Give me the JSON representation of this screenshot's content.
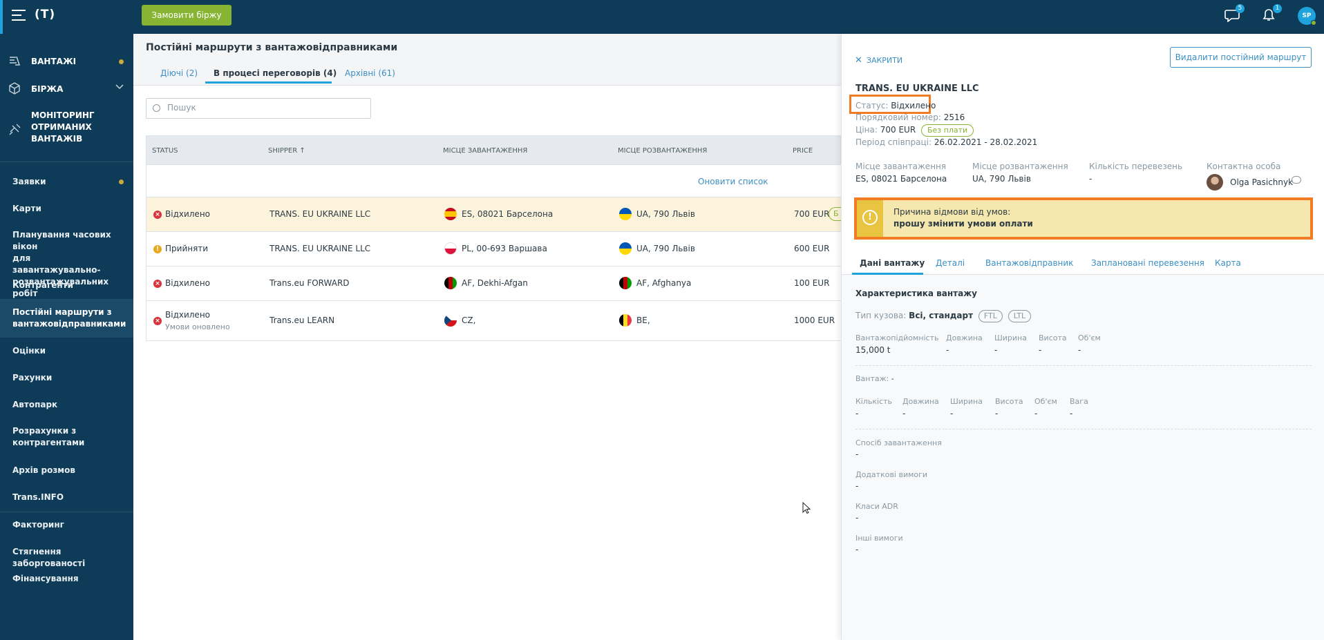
{
  "topbar": {
    "logo": "(T)",
    "order_button": "Замовити біржу",
    "messages_badge": "5",
    "notifications_badge": "1",
    "user_initials": "SP"
  },
  "sidebar": {
    "main": [
      {
        "label": "ВАНТАЖІ",
        "icon": "cargo-icon"
      },
      {
        "label": "БІРЖА",
        "icon": "box-icon"
      }
    ],
    "monitoring": {
      "line1": "МОНІТОРИНГ",
      "line2": "ОТРИМАНИХ",
      "line3": "ВАНТАЖІВ"
    },
    "items": [
      {
        "label": "Заявки"
      },
      {
        "label": "Карти"
      },
      {
        "line1": "Планування часових вікон",
        "line2": "для завантажувально-",
        "line3": "розвантажувальних робіт"
      },
      {
        "label": "Контрагенти"
      },
      {
        "line1": "Постійні маршрути з",
        "line2": "вантажовідправниками"
      },
      {
        "label": "Оцінки"
      },
      {
        "label": "Рахунки"
      },
      {
        "label": "Автопарк"
      },
      {
        "line1": "Розрахунки з",
        "line2": "контрагентами"
      },
      {
        "label": "Архів розмов"
      },
      {
        "label": "Trans.INFO"
      },
      {
        "label": "Факторинг"
      },
      {
        "label": "Стягнення заборгованості"
      },
      {
        "label": "Фінансування"
      }
    ]
  },
  "main": {
    "title": "Постійні маршрути з вантажовідправниками",
    "tabs": [
      {
        "label": "Діючі (2)"
      },
      {
        "label": "В процесі переговорів (4)"
      },
      {
        "label": "Архівні (61)"
      }
    ],
    "search_placeholder": "Пошук",
    "columns": [
      "STATUS",
      "SHIPPER ↑",
      "МІСЦЕ ЗАВАНТАЖЕННЯ",
      "МІСЦЕ РОЗВАНТАЖЕННЯ",
      "PRICE"
    ],
    "refresh": "Оновити список",
    "rows": [
      {
        "status": "Відхилено",
        "shipper": "TRANS. EU UKRAINE LLC",
        "load": "ES, 08021 Барселона",
        "unload": "UA, 790 Львів",
        "price": "700 EUR",
        "tag": "Б"
      },
      {
        "status": "Прийняти",
        "shipper": "TRANS. EU UKRAINE LLC",
        "load": "PL, 00-693 Варшава",
        "unload": "UA, 790 Львів",
        "price": "600 EUR"
      },
      {
        "status": "Відхилено",
        "shipper": "Trans.eu FORWARD",
        "load": "AF, Dekhi-Afgan",
        "unload": "AF, Afghanya",
        "price": "100 EUR"
      },
      {
        "status": "Відхилено",
        "sub": "Умови оновлено",
        "shipper": "Trans.eu LEARN",
        "load": "CZ,",
        "unload": "BE,",
        "price": "1000 EUR"
      }
    ]
  },
  "panel": {
    "close": "ЗАКРИТИ",
    "delete": "Видалити постійний маршрут",
    "company": "TRANS. EU UKRAINE LLC",
    "status_label": "Статус:",
    "status_value": "Відхилено",
    "number_label": "Порядковий номер:",
    "number_value": "2516",
    "price_label": "Ціна:",
    "price_value": "700 EUR",
    "price_pill": "Без плати",
    "period_label": "Період співпраці:",
    "period_value": "26.02.2021 - 28.02.2021",
    "details": {
      "load_h": "Місце завантаження",
      "load_v": "ES, 08021 Барселона",
      "unload_h": "Місце розвантаження",
      "unload_v": "UA, 790 Львів",
      "count_h": "Кількість перевезень",
      "count_v": "-",
      "contact_h": "Контактна особа",
      "contact_v": "Olga Pasichnyk"
    },
    "reason_title": "Причина відмови від умов:",
    "reason_text": "прошу змінити умови оплати",
    "tabs": [
      "Дані вантажу",
      "Деталі",
      "Вантажовідправник",
      "Заплановані перевезення",
      "Карта"
    ],
    "cargo": {
      "section": "Характеристика вантажу",
      "body_label": "Тип кузова:",
      "body_value": "Всі, стандарт",
      "chips": [
        "FTL",
        "LTL"
      ],
      "dims_h": [
        "Вантажопідйомність",
        "Довжина",
        "Ширина",
        "Висота",
        "Об'єм"
      ],
      "dims_v": [
        "15,000 t",
        "-",
        "-",
        "-",
        "-"
      ],
      "cargo_label": "Вантаж:",
      "cargo_value": "-",
      "goods_h": [
        "Кількість",
        "Довжина",
        "Ширина",
        "Висота",
        "Об'єм",
        "Вага"
      ],
      "goods_v": [
        "-",
        "-",
        "-",
        "-",
        "-",
        "-"
      ],
      "fields": [
        {
          "label": "Спосіб завантаження",
          "value": "-"
        },
        {
          "label": "Додаткові вимоги",
          "value": "-"
        },
        {
          "label": "Класи ADR",
          "value": "-"
        },
        {
          "label": "Інші вимоги",
          "value": "-"
        }
      ]
    }
  },
  "colors": {
    "topbar": "#0e3b57",
    "accent": "#1fa3dc",
    "green": "#87b533",
    "highlight": "#f07d23"
  }
}
